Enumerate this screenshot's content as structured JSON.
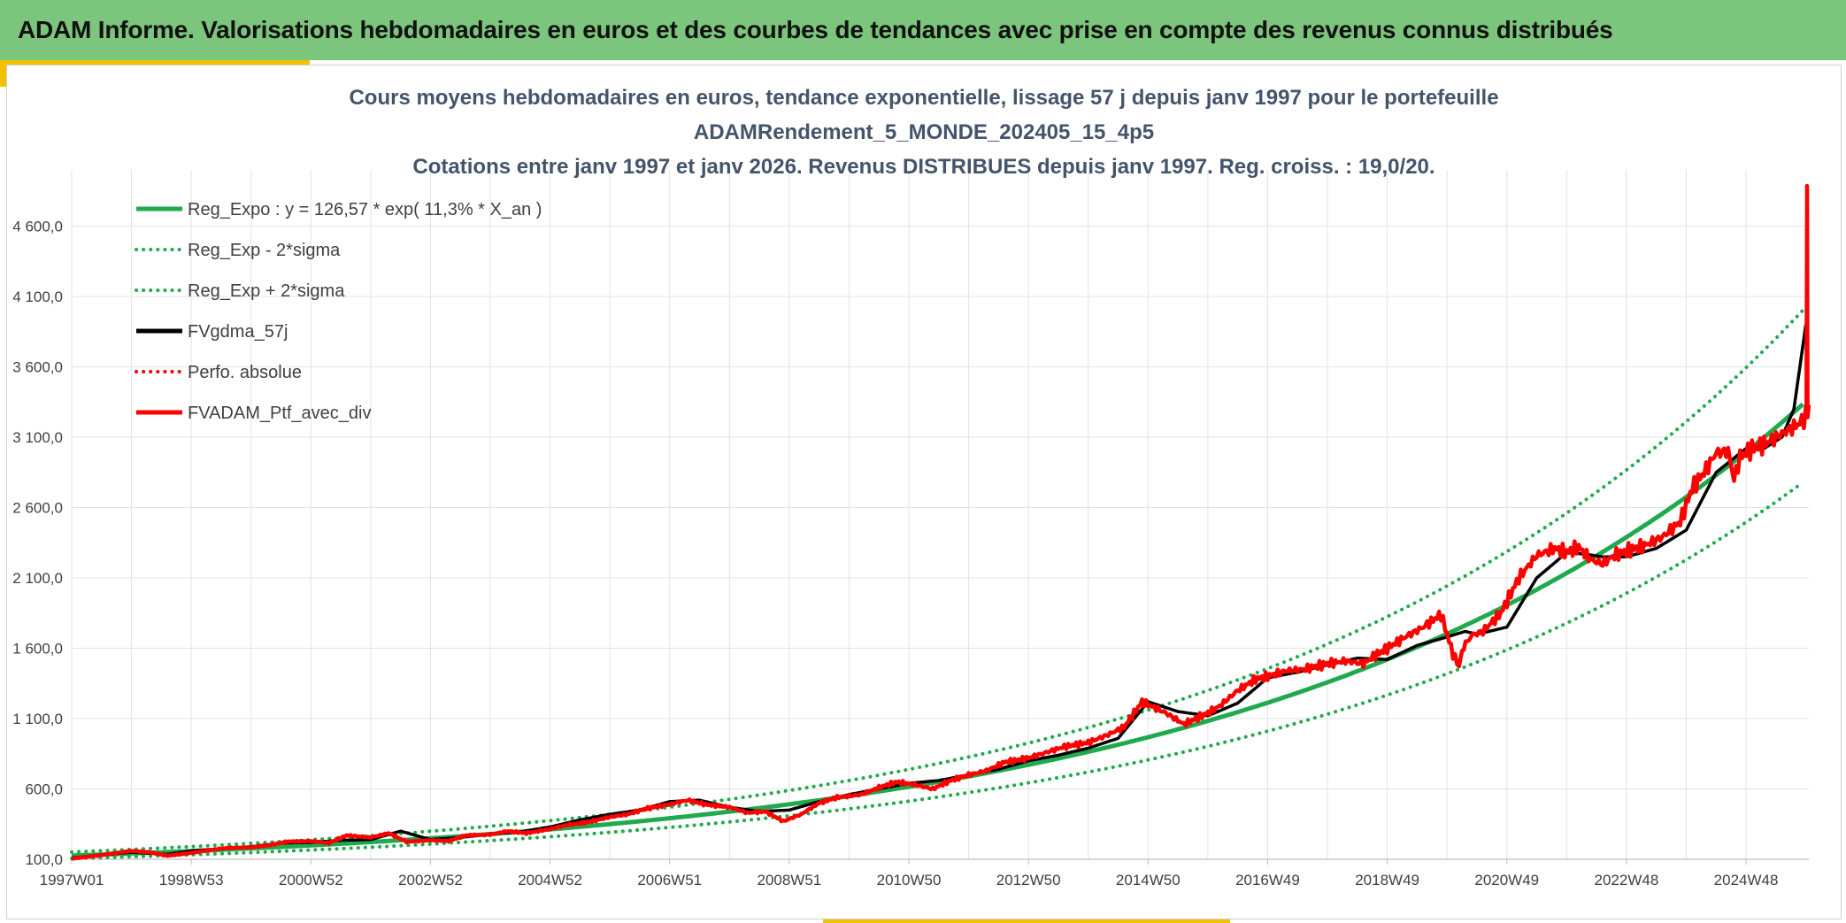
{
  "banner": {
    "title": "ADAM Informe. Valorisations hebdomadaires en euros et des courbes de tendances avec prise en compte des revenus connus distribués"
  },
  "colors": {
    "banner_bg": "#7cc57c",
    "accent": "#f2c200",
    "reg_expo": "#1faa4e",
    "sigma": "#1faa4e",
    "gdma": "#000000",
    "perfo": "#ff0000",
    "portfolio": "#ff0000",
    "grid": "#e3e3e3",
    "title_text": "#44546a"
  },
  "chart_data": {
    "type": "line",
    "title_lines": [
      "Cours moyens hebdomadaires en euros, tendance exponentielle, lissage 57 j depuis janv 1997 pour le portefeuille",
      "ADAMRendement_5_MONDE_202405_15_4p5",
      "Cotations entre janv 1997 et janv 2026. Revenus DISTRIBUES depuis janv 1997. Reg. croiss. : 19,0/20."
    ],
    "xlabel": "",
    "ylabel": "",
    "x_range": [
      1997.0,
      2026.05
    ],
    "ylim": [
      100,
      5000
    ],
    "y_ticks": [
      100,
      600,
      1100,
      1600,
      2100,
      2600,
      3100,
      3600,
      4100,
      4600
    ],
    "y_tick_labels": [
      "100,0",
      "600,0",
      "1 100,0",
      "1 600,0",
      "2 100,0",
      "2 600,0",
      "3 100,0",
      "3 600,0",
      "4 100,0",
      "4 600,0"
    ],
    "x_ticks": [
      1997.0,
      1999.0,
      2001.0,
      2003.0,
      2005.0,
      2007.0,
      2009.0,
      2011.0,
      2013.0,
      2015.0,
      2017.0,
      2019.0,
      2021.0,
      2023.0,
      2025.0
    ],
    "x_tick_labels": [
      "1997W01",
      "1998W53",
      "2000W52",
      "2002W52",
      "2004W52",
      "2006W51",
      "2008W51",
      "2010W50",
      "2012W50",
      "2014W50",
      "2016W49",
      "2018W49",
      "2020W49",
      "2022W48",
      "2024W48"
    ],
    "grid": true,
    "legend_position": "top-left",
    "regression": {
      "a": 126.57,
      "rate": 0.113,
      "sigma_factor": 1.2
    },
    "series": [
      {
        "name": "Reg_Expo : y = 126,57 * exp( 11,3% *  X_an )",
        "kind": "reg",
        "color": "#1faa4e",
        "style": "solid"
      },
      {
        "name": "Reg_Exp - 2*sigma",
        "kind": "reg_low",
        "color": "#1faa4e",
        "style": "dotted"
      },
      {
        "name": "Reg_Exp + 2*sigma",
        "kind": "reg_high",
        "color": "#1faa4e",
        "style": "dotted"
      },
      {
        "name": "FVgdma_57j",
        "kind": "smooth",
        "color": "#000000",
        "style": "solid",
        "x": [
          1997.0,
          1998.0,
          1998.6,
          1999.0,
          1999.5,
          2000.0,
          2000.5,
          2001.0,
          2001.5,
          2002.0,
          2002.5,
          2003.0,
          2003.5,
          2004.0,
          2004.5,
          2005.0,
          2005.5,
          2006.0,
          2006.5,
          2007.0,
          2007.5,
          2008.0,
          2008.5,
          2009.0,
          2009.5,
          2010.0,
          2010.5,
          2011.0,
          2011.5,
          2012.0,
          2012.5,
          2013.0,
          2013.5,
          2014.0,
          2014.5,
          2015.0,
          2015.5,
          2016.0,
          2016.5,
          2017.0,
          2017.5,
          2018.0,
          2018.5,
          2019.0,
          2019.5,
          2020.0,
          2020.3,
          2020.5,
          2021.0,
          2021.5,
          2022.0,
          2022.3,
          2022.6,
          2023.0,
          2023.5,
          2024.0,
          2024.5,
          2025.0,
          2025.3,
          2025.6,
          2025.8,
          2026.0
        ],
        "values": [
          110,
          150,
          135,
          160,
          175,
          190,
          215,
          220,
          235,
          240,
          300,
          240,
          255,
          280,
          295,
          330,
          380,
          420,
          450,
          510,
          520,
          470,
          440,
          450,
          510,
          560,
          600,
          640,
          660,
          700,
          740,
          800,
          840,
          890,
          960,
          1220,
          1150,
          1120,
          1210,
          1390,
          1430,
          1480,
          1530,
          1520,
          1620,
          1680,
          1720,
          1700,
          1750,
          2100,
          2280,
          2270,
          2250,
          2250,
          2310,
          2440,
          2850,
          3020,
          3020,
          3100,
          3300,
          3900
        ]
      },
      {
        "name": "Perfo. absolue",
        "kind": "perfo",
        "color": "#ff0000",
        "style": "dotted"
      },
      {
        "name": "FVADAM_Ptf_avec_div",
        "kind": "price",
        "color": "#ff0000",
        "style": "solid",
        "x": [
          1997.0,
          1997.5,
          1998.0,
          1998.3,
          1998.6,
          1999.0,
          1999.3,
          1999.6,
          2000.0,
          2000.3,
          2000.6,
          2001.0,
          2001.3,
          2001.6,
          2002.0,
          2002.3,
          2002.6,
          2003.0,
          2003.3,
          2003.6,
          2004.0,
          2004.3,
          2004.6,
          2005.0,
          2005.3,
          2005.6,
          2006.0,
          2006.3,
          2006.6,
          2007.0,
          2007.3,
          2007.6,
          2008.0,
          2008.3,
          2008.6,
          2008.9,
          2009.2,
          2009.5,
          2009.8,
          2010.2,
          2010.5,
          2010.8,
          2011.1,
          2011.4,
          2011.7,
          2012.0,
          2012.3,
          2012.6,
          2013.0,
          2013.3,
          2013.6,
          2014.0,
          2014.3,
          2014.6,
          2014.9,
          2015.3,
          2015.6,
          2015.8,
          2016.0,
          2016.2,
          2016.5,
          2016.8,
          2017.0,
          2017.3,
          2017.6,
          2018.0,
          2018.3,
          2018.6,
          2018.8,
          2019.0,
          2019.3,
          2019.6,
          2019.9,
          2020.1,
          2020.2,
          2020.25,
          2020.4,
          2020.6,
          2020.9,
          2021.2,
          2021.5,
          2021.8,
          2022.0,
          2022.2,
          2022.4,
          2022.6,
          2022.8,
          2023.0,
          2023.3,
          2023.6,
          2023.9,
          2024.1,
          2024.3,
          2024.5,
          2024.7,
          2024.8,
          2024.9,
          2025.1,
          2025.3,
          2025.5,
          2025.7,
          2025.9,
          2026.0,
          2026.01,
          2026.02,
          2026.03,
          2026.05
        ],
        "values": [
          105,
          130,
          160,
          150,
          125,
          145,
          165,
          180,
          185,
          200,
          225,
          230,
          215,
          270,
          255,
          285,
          225,
          235,
          230,
          270,
          275,
          300,
          285,
          315,
          345,
          360,
          400,
          420,
          460,
          490,
          520,
          490,
          470,
          430,
          440,
          370,
          420,
          500,
          540,
          560,
          610,
          650,
          630,
          600,
          660,
          700,
          730,
          790,
          820,
          860,
          900,
          930,
          980,
          1040,
          1220,
          1140,
          1060,
          1100,
          1140,
          1190,
          1300,
          1380,
          1400,
          1440,
          1450,
          1490,
          1510,
          1490,
          1550,
          1600,
          1680,
          1750,
          1840,
          1560,
          1470,
          1580,
          1690,
          1720,
          1850,
          2100,
          2260,
          2310,
          2280,
          2320,
          2230,
          2200,
          2260,
          2290,
          2330,
          2390,
          2500,
          2740,
          2850,
          2990,
          3000,
          2800,
          2960,
          3020,
          3050,
          3100,
          3150,
          3200,
          3250,
          3300,
          4900,
          3250,
          3330
        ]
      }
    ]
  }
}
